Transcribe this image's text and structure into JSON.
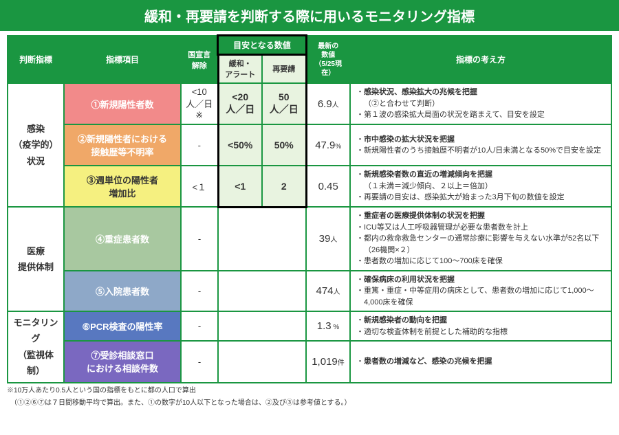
{
  "title": "緩和・再要請を判断する際に用いるモニタリング指標",
  "header": {
    "criteria": "判断指標",
    "item": "指標項目",
    "national": "国宣言\n解除",
    "benchmark": "目安となる数値",
    "benchmark_ease": "緩和・\nアラート",
    "benchmark_req": "再要請",
    "latest": "最新の\n数値\n（5/25現在）",
    "rationale": "指標の考え方"
  },
  "categories": [
    {
      "label": "感染\n（疫学的）\n状況",
      "rows": [
        {
          "item": "①新規陽性者数",
          "color": "#f28a8a",
          "national": "<10\n人／日\n※",
          "ease": "<20\n人／日",
          "req": "50\n人／日",
          "latest_num": "6.9",
          "latest_unit": "人",
          "rationale": [
            {
              "t": "感染状況、感染拡大の兆候を把握",
              "b": true
            },
            {
              "t": "（②と合わせて判断）",
              "sub": true
            },
            {
              "t": "第１波の感染拡大局面の状況を踏まえて、目安を設定"
            }
          ]
        },
        {
          "item": "②新規陽性者における\n接触歴等不明率",
          "color": "#f0a868",
          "national": "-",
          "ease": "<50%",
          "req": "50%",
          "latest_num": "47.9",
          "latest_unit": "%",
          "rationale": [
            {
              "t": "市中感染の拡大状況を把握",
              "b": true
            },
            {
              "t": "新規陽性者のうち接触歴不明者が10人/日未満となる50%で目安を設定"
            }
          ]
        },
        {
          "item": "③週単位の陽性者\n増加比",
          "color": "#f5f080",
          "text_color": "#333",
          "national": "<１",
          "ease": "<1",
          "req": "2",
          "latest_num": "0.45",
          "latest_unit": "",
          "rationale": [
            {
              "t": "新規感染者数の直近の増減傾向を把握",
              "b": true
            },
            {
              "t": "（１未満＝減少傾向、２以上＝倍加）",
              "sub": true
            },
            {
              "t": "再要請の目安は、感染拡大が始まった3月下旬の数値を設定"
            }
          ]
        }
      ]
    },
    {
      "label": "医療\n提供体制",
      "rows": [
        {
          "item": "④重症患者数",
          "color": "#a8c8a0",
          "national": "-",
          "ease": "",
          "req": "",
          "latest_num": "39",
          "latest_unit": "人",
          "rationale": [
            {
              "t": "重症者の医療提供体制の状況を把握",
              "b": true
            },
            {
              "t": "ICU等又は人工呼吸器管理が必要な患者数を計上"
            },
            {
              "t": "都内の救命救急センターの通常診療に影響を与えない水準が52名以下（26機関×２）"
            },
            {
              "t": "患者数の増加に応じて100～700床を確保"
            }
          ]
        },
        {
          "item": "⑤入院患者数",
          "color": "#8ea8c8",
          "national": "-",
          "ease": "",
          "req": "",
          "latest_num": "474",
          "latest_unit": "人",
          "rationale": [
            {
              "t": "確保病床の利用状況を把握",
              "b": true
            },
            {
              "t": "重篤・重症・中等症用の病床として、患者数の増加に応じて1,000～4,000床を確保"
            }
          ]
        }
      ]
    },
    {
      "label": "モニタリング\n（監視体制）",
      "rows": [
        {
          "item": "⑥PCR検査の陽性率",
          "color": "#5878c0",
          "national": "-",
          "ease": "",
          "req": "",
          "latest_num": "1.3",
          "latest_unit": " %",
          "rationale": [
            {
              "t": "新規感染者の動向を把握",
              "b": true
            },
            {
              "t": "適切な検査体制を前提とした補助的な指標"
            }
          ]
        },
        {
          "item": "⑦受診相談窓口\nにおける相談件数",
          "color": "#7a68c0",
          "national": "-",
          "ease": "",
          "req": "",
          "latest_num": "1,019",
          "latest_unit": "件",
          "rationale": [
            {
              "t": "患者数の増減など、感染の兆候を把握",
              "b": true
            }
          ]
        }
      ]
    }
  ],
  "footnote1": "※10万人あたり0.5人という国の指標をもとに都の人口で算出",
  "footnote2": "（①②⑥⑦は７日間移動平均で算出。また、①の数字が10人以下となった場合は、②及び③は参考値とする。）"
}
